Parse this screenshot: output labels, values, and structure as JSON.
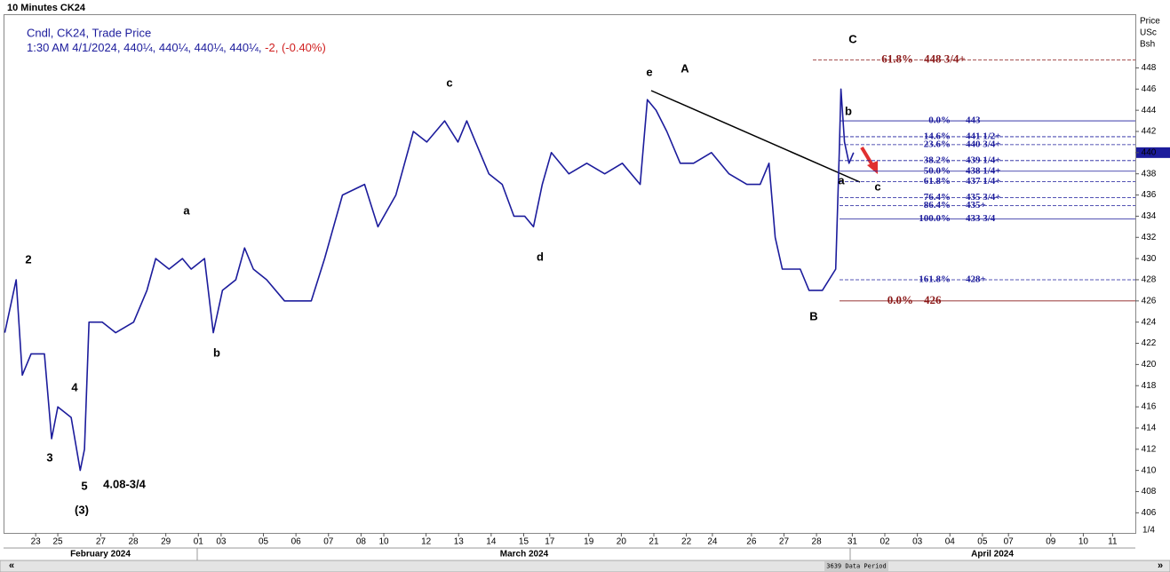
{
  "chart_data": {
    "type": "line",
    "title": "10 Minutes CK24",
    "legend_title": "Cndl, CK24, Trade Price",
    "legend_info": "1:30 AM 4/1/2024, 440¼, 440¼, 440¼, 440¼,",
    "legend_change": "-2, (-0.40%)",
    "ylabel": [
      "Price",
      "USc",
      "Bsh"
    ],
    "color": "#1c1c9c",
    "x": [
      -0.95,
      -0.6,
      -0.41,
      -0.14,
      0.27,
      0.49,
      0.68,
      1.09,
      1.37,
      1.5,
      1.64,
      2.05,
      2.46,
      3.01,
      3.42,
      3.69,
      4.1,
      4.51,
      4.78,
      5.19,
      5.46,
      5.74,
      6.15,
      6.42,
      6.69,
      7.1,
      7.65,
      8.47,
      8.88,
      9.43,
      10.11,
      10.52,
      11.07,
      11.61,
      12.02,
      12.57,
      12.98,
      13.25,
      13.52,
      13.93,
      14.34,
      14.7,
      15.03,
      15.3,
      15.57,
      15.85,
      16.39,
      16.94,
      17.49,
      18.03,
      18.58,
      18.8,
      19.07,
      19.4,
      19.81,
      20.22,
      20.77,
      21.31,
      21.86,
      22.27,
      22.54,
      22.73,
      22.95,
      23.5,
      23.77,
      24.18,
      24.59,
      24.7,
      24.75,
      24.86,
      25.0,
      25.14
    ],
    "values": [
      423,
      428,
      419,
      421,
      421,
      413,
      416,
      415,
      410,
      412,
      424,
      424,
      423,
      424,
      427,
      430,
      429,
      430,
      429,
      430,
      423,
      427,
      428,
      431,
      429,
      428,
      426,
      426,
      430,
      436,
      437,
      433,
      436,
      442,
      441,
      443,
      441,
      443,
      441,
      438,
      437,
      434,
      434,
      433,
      437,
      440,
      438,
      439,
      438,
      439,
      437,
      445,
      444,
      442,
      439,
      439,
      440,
      438,
      437,
      437,
      439,
      432,
      429,
      429,
      427,
      427,
      429,
      440,
      446,
      441,
      439,
      440
    ],
    "ylim": [
      404.1,
      452.9
    ],
    "yticks": [
      406,
      408,
      410,
      412,
      414,
      416,
      418,
      420,
      422,
      424,
      426,
      428,
      430,
      432,
      434,
      436,
      438,
      440,
      442,
      444,
      446,
      448
    ],
    "xlim": [
      -0.96,
      33.8
    ],
    "xticks": [
      {
        "value": 0,
        "label": "23"
      },
      {
        "value": 0.68,
        "label": "25"
      },
      {
        "value": 2.0,
        "label": "27"
      },
      {
        "value": 3.0,
        "label": "28"
      },
      {
        "value": 4.0,
        "label": "29"
      },
      {
        "value": 5.0,
        "label": "01"
      },
      {
        "value": 5.7,
        "label": "03"
      },
      {
        "value": 7.0,
        "label": "05"
      },
      {
        "value": 8.0,
        "label": "06"
      },
      {
        "value": 9.0,
        "label": "07"
      },
      {
        "value": 10.0,
        "label": "08"
      },
      {
        "value": 10.7,
        "label": "10"
      },
      {
        "value": 12.0,
        "label": "12"
      },
      {
        "value": 13.0,
        "label": "13"
      },
      {
        "value": 14.0,
        "label": "14"
      },
      {
        "value": 15.0,
        "label": "15"
      },
      {
        "value": 15.8,
        "label": "17"
      },
      {
        "value": 17.0,
        "label": "19"
      },
      {
        "value": 18.0,
        "label": "20"
      },
      {
        "value": 19.0,
        "label": "21"
      },
      {
        "value": 20.0,
        "label": "22"
      },
      {
        "value": 20.8,
        "label": "24"
      },
      {
        "value": 22.0,
        "label": "26"
      },
      {
        "value": 23.0,
        "label": "27"
      },
      {
        "value": 24.0,
        "label": "28"
      },
      {
        "value": 25.1,
        "label": "31"
      },
      {
        "value": 26.1,
        "label": "02"
      },
      {
        "value": 27.1,
        "label": "03"
      },
      {
        "value": 28.1,
        "label": "04"
      },
      {
        "value": 29.1,
        "label": "05"
      },
      {
        "value": 29.9,
        "label": "07"
      },
      {
        "value": 31.2,
        "label": "09"
      },
      {
        "value": 32.2,
        "label": "10"
      },
      {
        "value": 33.1,
        "label": "11"
      }
    ],
    "months": [
      "February 2024",
      "March 2024",
      "April 2024"
    ],
    "levels": [
      {
        "pct": "0.0%",
        "price": "443",
        "value": 443,
        "style": "solid",
        "color": "#1c1c9c",
        "bold": false
      },
      {
        "pct": "14.6%",
        "price": "441 1/2+",
        "value": 441.5,
        "style": "dashed",
        "color": "#1c1c9c",
        "bold": false
      },
      {
        "pct": "23.6%",
        "price": "440 3/4+",
        "value": 440.75,
        "style": "dashed",
        "color": "#1c1c9c",
        "bold": false
      },
      {
        "pct": "38.2%",
        "price": "439 1/4+",
        "value": 439.25,
        "style": "dashed",
        "color": "#1c1c9c",
        "bold": false
      },
      {
        "pct": "50.0%",
        "price": "438 1/4+",
        "value": 438.25,
        "style": "solid",
        "color": "#1c1c9c",
        "bold": false
      },
      {
        "pct": "61.8%",
        "price": "437 1/4+",
        "value": 437.25,
        "style": "dashed",
        "color": "#1c1c9c",
        "bold": false
      },
      {
        "pct": "76.4%",
        "price": "435 3/4+",
        "value": 435.75,
        "style": "dashed",
        "color": "#1c1c9c",
        "bold": false
      },
      {
        "pct": "86.4%",
        "price": "435+",
        "value": 435,
        "style": "dashed",
        "color": "#1c1c9c",
        "bold": false
      },
      {
        "pct": "100.0%",
        "price": "433 3/4",
        "value": 433.75,
        "style": "solid",
        "color": "#1c1c9c",
        "bold": false
      },
      {
        "pct": "161.8%",
        "price": "428+",
        "value": 428,
        "style": "dashed",
        "color": "#1c1c9c",
        "bold": false
      },
      {
        "pct": "61.8%",
        "price": "448 3/4+",
        "value": 448.75,
        "style": "dashed",
        "color": "#8b1a1a",
        "bold": true
      },
      {
        "pct": "0.0%",
        "price": "426",
        "value": 426,
        "style": "solid",
        "color": "#8b1a1a",
        "bold": true
      }
    ],
    "annotations": [
      "2",
      "3",
      "4",
      "5",
      "(3)",
      "4.08-3/4",
      "a",
      "b",
      "c",
      "d",
      "e",
      "A",
      "B",
      "C",
      "b",
      "a",
      "c"
    ],
    "footer": "3639 Data Period",
    "page": "1/4"
  }
}
